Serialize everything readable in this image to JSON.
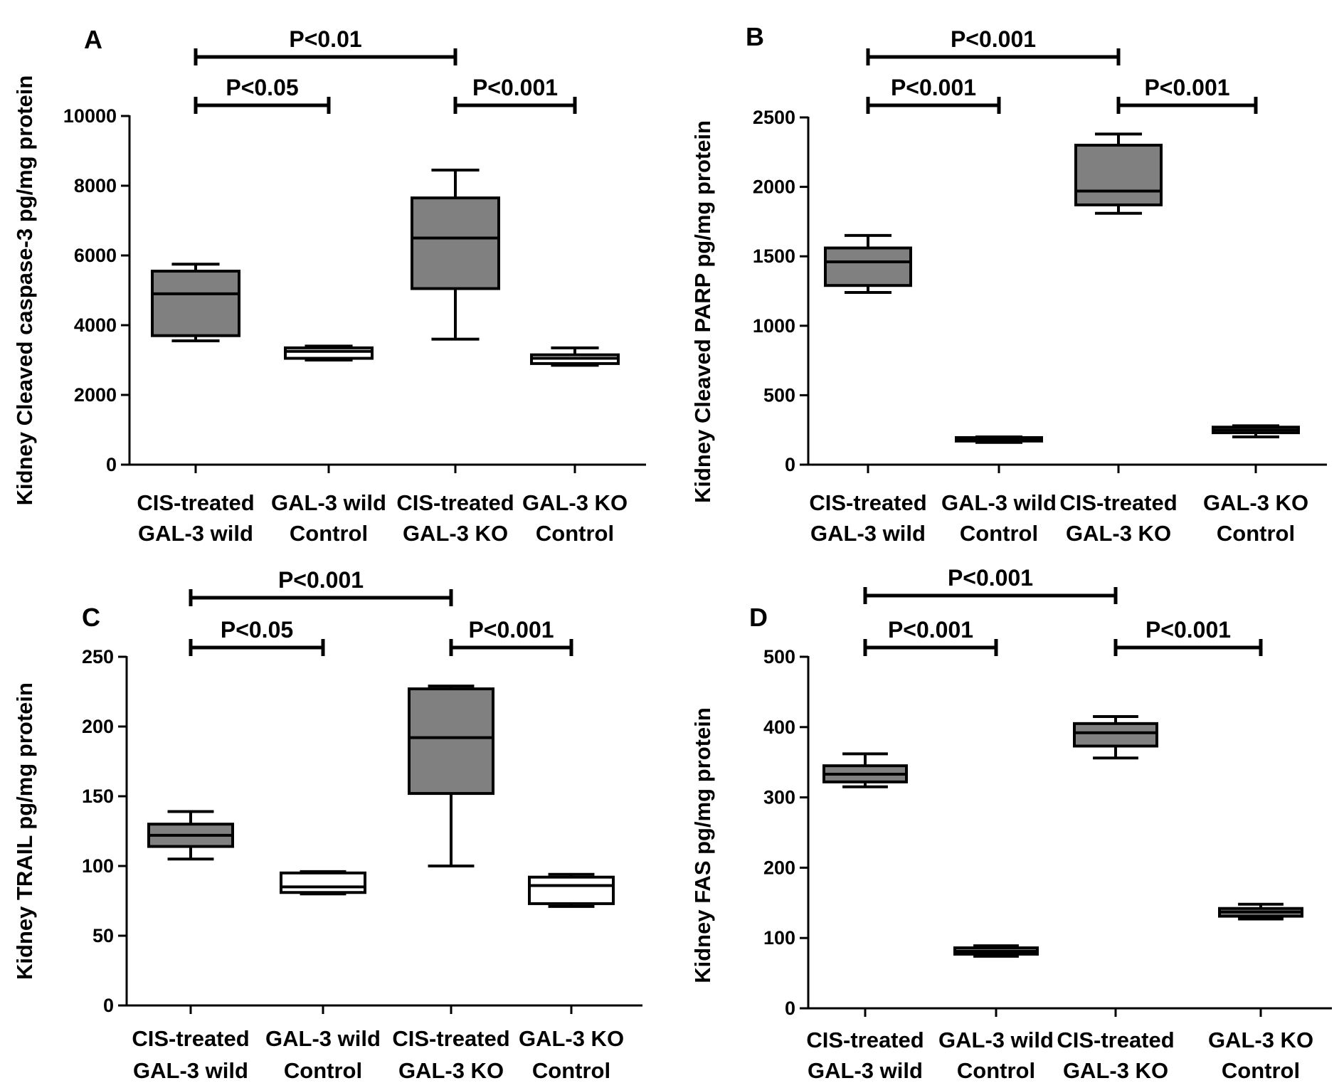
{
  "chart_data": [
    {
      "type": "box",
      "panel": "A",
      "ylabel": "Kidney Cleaved caspase-3 pg/mg protein",
      "ylim": [
        0,
        10000
      ],
      "yticks": [
        0,
        2000,
        4000,
        6000,
        8000,
        10000
      ],
      "ytick_labels": [
        "0",
        "2000",
        "4000",
        "6000",
        "8000",
        "10000"
      ],
      "categories": [
        {
          "line1": "CIS-treated",
          "line2": "GAL-3 wild"
        },
        {
          "line1": "GAL-3 wild",
          "line2": "Control"
        },
        {
          "line1": "CIS-treated",
          "line2": "GAL-3 KO"
        },
        {
          "line1": "GAL-3 KO",
          "line2": "Control"
        }
      ],
      "boxes": [
        {
          "min": 3550,
          "q1": 3700,
          "median": 4900,
          "q3": 5550,
          "max": 5750,
          "color": "#808080"
        },
        {
          "min": 3000,
          "q1": 3050,
          "median": 3250,
          "q3": 3350,
          "max": 3400,
          "color": "#ffffff"
        },
        {
          "min": 3600,
          "q1": 5050,
          "median": 6500,
          "q3": 7650,
          "max": 8450,
          "color": "#808080"
        },
        {
          "min": 2850,
          "q1": 2900,
          "median": 3050,
          "q3": 3150,
          "max": 3350,
          "color": "#ffffff"
        }
      ],
      "comparisons": [
        {
          "from": 0,
          "to": 2,
          "label": "P<0.01",
          "level": 1
        },
        {
          "from": 0,
          "to": 1,
          "label": "P<0.05",
          "level": 0
        },
        {
          "from": 2,
          "to": 3,
          "label": "P<0.001",
          "level": 0
        }
      ]
    },
    {
      "type": "box",
      "panel": "B",
      "ylabel": "Kidney Cleaved PARP pg/mg protein",
      "ylim": [
        0,
        2500
      ],
      "yticks": [
        0,
        500,
        1000,
        1500,
        2000,
        2500
      ],
      "ytick_labels": [
        "0",
        "500",
        "1000",
        "1500",
        "2000",
        "2500"
      ],
      "categories": [
        {
          "line1": "CIS-treated",
          "line2": "GAL-3 wild"
        },
        {
          "line1": "GAL-3 wild",
          "line2": "Control"
        },
        {
          "line1": "CIS-treated",
          "line2": "GAL-3 KO"
        },
        {
          "line1": "GAL-3 KO",
          "line2": "Control"
        }
      ],
      "boxes": [
        {
          "min": 1240,
          "q1": 1290,
          "median": 1460,
          "q3": 1560,
          "max": 1650,
          "color": "#808080"
        },
        {
          "min": 160,
          "q1": 170,
          "median": 185,
          "q3": 195,
          "max": 200,
          "color": "#ffffff"
        },
        {
          "min": 1810,
          "q1": 1870,
          "median": 1970,
          "q3": 2300,
          "max": 2380,
          "color": "#808080"
        },
        {
          "min": 200,
          "q1": 230,
          "median": 250,
          "q3": 270,
          "max": 280,
          "color": "#ffffff"
        }
      ],
      "comparisons": [
        {
          "from": 0,
          "to": 2,
          "label": "P<0.001",
          "level": 1
        },
        {
          "from": 0,
          "to": 1,
          "label": "P<0.001",
          "level": 0
        },
        {
          "from": 2,
          "to": 3,
          "label": "P<0.001",
          "level": 0
        }
      ]
    },
    {
      "type": "box",
      "panel": "C",
      "ylabel": "Kidney TRAIL pg/mg protein",
      "ylim": [
        0,
        250
      ],
      "yticks": [
        0,
        50,
        100,
        150,
        200,
        250
      ],
      "ytick_labels": [
        "0",
        "50",
        "100",
        "150",
        "200",
        "250"
      ],
      "categories": [
        {
          "line1": "CIS-treated",
          "line2": "GAL-3 wild"
        },
        {
          "line1": "GAL-3 wild",
          "line2": "Control"
        },
        {
          "line1": "CIS-treated",
          "line2": "GAL-3 KO"
        },
        {
          "line1": "GAL-3 KO",
          "line2": "Control"
        }
      ],
      "boxes": [
        {
          "min": 105,
          "q1": 114,
          "median": 122,
          "q3": 130,
          "max": 139,
          "color": "#808080"
        },
        {
          "min": 80,
          "q1": 81,
          "median": 85,
          "q3": 95,
          "max": 96,
          "color": "#ffffff"
        },
        {
          "min": 100,
          "q1": 152,
          "median": 192,
          "q3": 227,
          "max": 229,
          "color": "#808080"
        },
        {
          "min": 71,
          "q1": 73,
          "median": 86,
          "q3": 92,
          "max": 94,
          "color": "#ffffff"
        }
      ],
      "comparisons": [
        {
          "from": 0,
          "to": 2,
          "label": "P<0.001",
          "level": 1
        },
        {
          "from": 0,
          "to": 1,
          "label": "P<0.05",
          "level": 0
        },
        {
          "from": 2,
          "to": 3,
          "label": "P<0.001",
          "level": 0
        }
      ]
    },
    {
      "type": "box",
      "panel": "D",
      "ylabel": "Kidney FAS pg/mg protein",
      "ylim": [
        0,
        500
      ],
      "yticks": [
        0,
        100,
        200,
        300,
        400,
        500
      ],
      "ytick_labels": [
        "0",
        "100",
        "200",
        "300",
        "400",
        "500"
      ],
      "categories": [
        {
          "line1": "CIS-treated",
          "line2": "GAL-3 wild"
        },
        {
          "line1": "GAL-3 wild",
          "line2": "Control"
        },
        {
          "line1": "CIS-treated",
          "line2": "GAL-3 KO"
        },
        {
          "line1": "GAL-3 KO",
          "line2": "Control"
        }
      ],
      "boxes": [
        {
          "min": 315,
          "q1": 322,
          "median": 333,
          "q3": 345,
          "max": 362,
          "color": "#808080"
        },
        {
          "min": 74,
          "q1": 77,
          "median": 81,
          "q3": 86,
          "max": 89,
          "color": "#808080"
        },
        {
          "min": 356,
          "q1": 373,
          "median": 392,
          "q3": 405,
          "max": 415,
          "color": "#808080"
        },
        {
          "min": 127,
          "q1": 131,
          "median": 137,
          "q3": 142,
          "max": 148,
          "color": "#808080"
        }
      ],
      "comparisons": [
        {
          "from": 0,
          "to": 2,
          "label": "P<0.001",
          "level": 1
        },
        {
          "from": 0,
          "to": 1,
          "label": "P<0.001",
          "level": 0
        },
        {
          "from": 2,
          "to": 3,
          "label": "P<0.001",
          "level": 0
        }
      ]
    }
  ]
}
